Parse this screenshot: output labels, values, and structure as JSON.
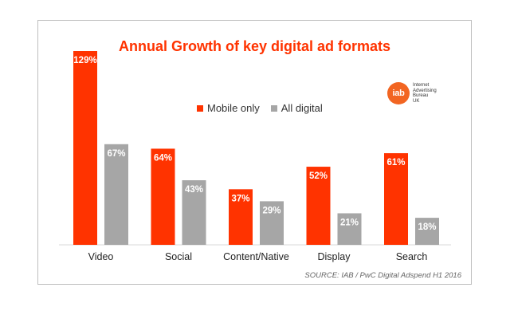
{
  "chart_data": {
    "type": "bar",
    "title": "Annual Growth of key digital ad formats",
    "categories": [
      "Video",
      "Social",
      "Content/Native",
      "Display",
      "Search"
    ],
    "series": [
      {
        "name": "Mobile only",
        "values": [
          129,
          64,
          37,
          52,
          61
        ],
        "labels": [
          "129%",
          "64%",
          "37%",
          "52%",
          "61%"
        ],
        "color": "#ff3300"
      },
      {
        "name": "All digital",
        "values": [
          67,
          43,
          29,
          21,
          18
        ],
        "labels": [
          "67%",
          "43%",
          "29%",
          "21%",
          "18%"
        ],
        "color": "#a6a6a6"
      }
    ],
    "ylim": [
      0,
      129
    ],
    "grid": false,
    "legend_position": "top-center"
  },
  "logo": {
    "mark": "iab",
    "text_lines": [
      "Internet",
      "Advertising",
      "Bureau",
      "UK"
    ],
    "color": "#f26522"
  },
  "source": "SOURCE: IAB / PwC Digital Adspend H1 2016"
}
